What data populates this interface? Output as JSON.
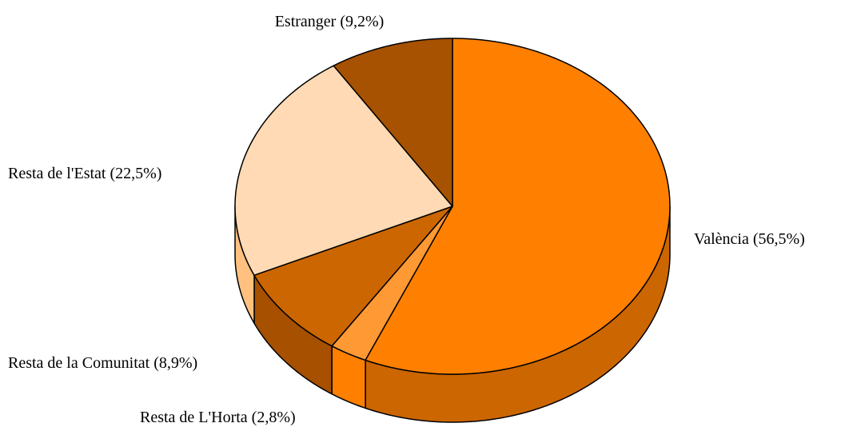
{
  "chart_data": {
    "type": "pie",
    "categories": [
      "València",
      "Resta de L'Horta",
      "Resta de la Comunitat",
      "Resta de l'Estat",
      "Estranger"
    ],
    "values": [
      56.5,
      2.8,
      8.9,
      22.5,
      9.2
    ],
    "value_labels": [
      "(56,5%)",
      "(2,8%)",
      "(8,9%)",
      "(22,5%)",
      "(9,2%)"
    ],
    "colors": [
      "#ff8000",
      "#ff9933",
      "#cc6600",
      "#ffdab4",
      "#a65200"
    ],
    "side_colors": [
      "#cc6600",
      "#ff8000",
      "#a65000",
      "#ffc080",
      "#8a4400"
    ]
  }
}
